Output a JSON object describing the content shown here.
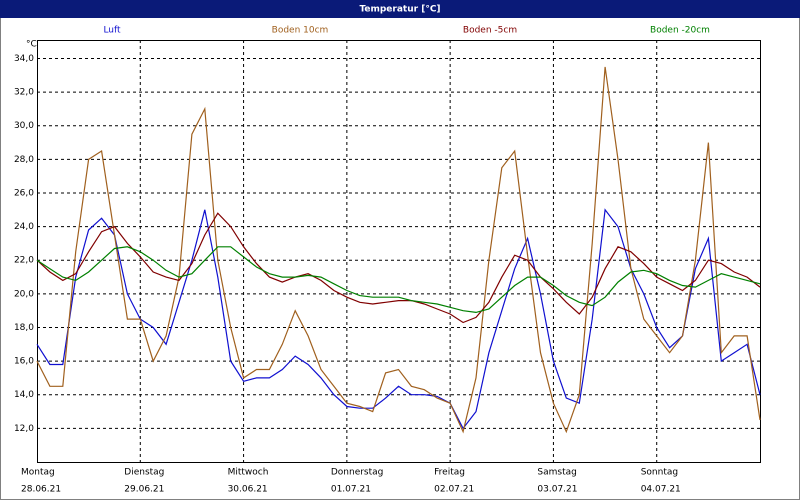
{
  "chart_data": {
    "type": "line",
    "title": "Temperatur [°C]",
    "y_unit": "°C",
    "x": [
      0,
      0.125,
      0.25,
      0.375,
      0.5,
      0.625,
      0.75,
      0.875,
      1,
      1.125,
      1.25,
      1.375,
      1.5,
      1.625,
      1.75,
      1.875,
      2,
      2.125,
      2.25,
      2.375,
      2.5,
      2.625,
      2.75,
      2.875,
      3,
      3.125,
      3.25,
      3.375,
      3.5,
      3.625,
      3.75,
      3.875,
      4,
      4.125,
      4.25,
      4.375,
      4.5,
      4.625,
      4.75,
      4.875,
      5,
      5.125,
      5.25,
      5.375,
      5.5,
      5.625,
      5.75,
      5.875,
      6,
      6.125,
      6.25,
      6.375,
      6.5,
      6.625,
      6.75,
      6.875,
      7
    ],
    "series": [
      {
        "name": "Luft",
        "color": "#1010d0",
        "values": [
          17.0,
          15.8,
          15.8,
          21.0,
          23.8,
          24.5,
          23.5,
          20,
          18.5,
          18.0,
          17.0,
          19.5,
          22,
          25,
          21,
          16,
          14.8,
          15.0,
          15.0,
          15.5,
          16.3,
          15.8,
          15.0,
          14.0,
          13.3,
          13.2,
          13.2,
          13.8,
          14.5,
          14.0,
          14.0,
          13.9,
          13.5,
          12.0,
          13.0,
          16.5,
          19,
          21.5,
          23.3,
          20,
          16.0,
          13.8,
          13.5,
          18.5,
          25,
          24,
          21.5,
          20,
          18,
          16.8,
          17.5,
          21.5,
          23.3,
          16.0,
          16.5,
          17.0,
          14.0
        ]
      },
      {
        "name": "Boden 10cm",
        "color": "#a0601e",
        "values": [
          16.0,
          14.5,
          14.5,
          22.5,
          28,
          28.5,
          23.5,
          18.5,
          18.5,
          16.0,
          17.5,
          21,
          29.5,
          31,
          22,
          18,
          15,
          15.5,
          15.5,
          17,
          19,
          17.5,
          15.5,
          14.5,
          13.5,
          13.3,
          13.0,
          15.3,
          15.5,
          14.5,
          14.3,
          13.8,
          13.5,
          11.8,
          15,
          22,
          27.5,
          28.5,
          22.3,
          16.5,
          13.5,
          11.8,
          14,
          23,
          33.5,
          28,
          21.5,
          18.5,
          17.5,
          16.5,
          17.5,
          22,
          29,
          16.5,
          17.5,
          17.5,
          12.5
        ]
      },
      {
        "name": "Boden -5cm",
        "color": "#800000",
        "values": [
          22.0,
          21.3,
          20.8,
          21.2,
          22.5,
          23.7,
          24.0,
          23.0,
          22.2,
          21.3,
          21.0,
          20.8,
          21.8,
          23.5,
          24.8,
          24.0,
          22.8,
          21.8,
          21.0,
          20.7,
          21.0,
          21.2,
          20.8,
          20.2,
          19.8,
          19.5,
          19.4,
          19.5,
          19.6,
          19.6,
          19.4,
          19.1,
          18.8,
          18.3,
          18.6,
          19.5,
          21.0,
          22.3,
          22.0,
          21.0,
          20.3,
          19.5,
          18.8,
          19.8,
          21.5,
          22.8,
          22.5,
          21.8,
          21.0,
          20.6,
          20.2,
          20.8,
          22.0,
          21.8,
          21.3,
          21.0,
          20.4
        ]
      },
      {
        "name": "Boden -20cm",
        "color": "#008000",
        "values": [
          22.0,
          21.5,
          21.0,
          20.8,
          21.3,
          22.0,
          22.7,
          22.8,
          22.5,
          22.0,
          21.4,
          21.0,
          21.2,
          22.0,
          22.8,
          22.8,
          22.2,
          21.6,
          21.2,
          21.0,
          21.0,
          21.1,
          21.0,
          20.6,
          20.2,
          19.9,
          19.8,
          19.8,
          19.8,
          19.6,
          19.5,
          19.4,
          19.2,
          19.0,
          18.9,
          19.1,
          19.8,
          20.5,
          21.0,
          21.0,
          20.5,
          19.9,
          19.5,
          19.3,
          19.8,
          20.7,
          21.3,
          21.4,
          21.2,
          20.8,
          20.5,
          20.4,
          20.8,
          21.2,
          21.0,
          20.8,
          20.6
        ]
      }
    ],
    "xlim": [
      0,
      7
    ],
    "xticks": [
      {
        "value": 0,
        "label": "Montag"
      },
      {
        "value": 1,
        "label": "Dienstag"
      },
      {
        "value": 2,
        "label": "Mittwoch"
      },
      {
        "value": 3,
        "label": "Donnerstag"
      },
      {
        "value": 4,
        "label": "Freitag"
      },
      {
        "value": 5,
        "label": "Samstag"
      },
      {
        "value": 6,
        "label": "Sonntag"
      }
    ],
    "xtick_dates": [
      "28.06.21",
      "29.06.21",
      "30.06.21",
      "01.07.21",
      "02.07.21",
      "03.07.21",
      "04.07.21"
    ],
    "ylim": [
      10,
      35.1
    ],
    "yticks": [
      {
        "value": 12,
        "label": "12,0"
      },
      {
        "value": 14,
        "label": "14,0"
      },
      {
        "value": 16,
        "label": "16,0"
      },
      {
        "value": 18,
        "label": "18,0"
      },
      {
        "value": 20,
        "label": "20,0"
      },
      {
        "value": 22,
        "label": "22,0"
      },
      {
        "value": 24,
        "label": "24,0"
      },
      {
        "value": 26,
        "label": "26,0"
      },
      {
        "value": 28,
        "label": "28,0"
      },
      {
        "value": 30,
        "label": "30,0"
      },
      {
        "value": 32,
        "label": "32,0"
      },
      {
        "value": 34,
        "label": "34,0"
      }
    ],
    "grid": true
  }
}
